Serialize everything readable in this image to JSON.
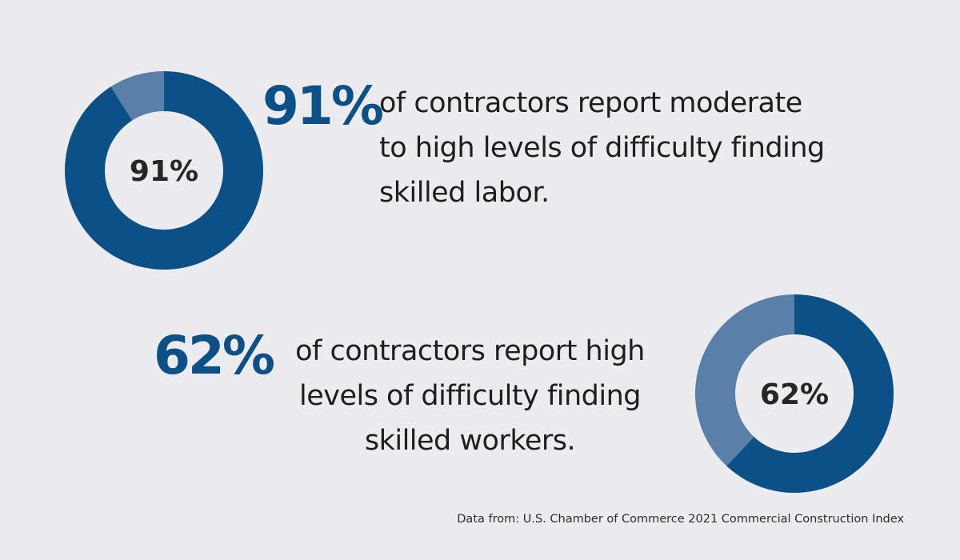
{
  "colors": {
    "background": "#ececee",
    "primary": "#0b5086",
    "secondary": "#5a80a9",
    "text": "#1e1e1e"
  },
  "chart_data": [
    {
      "type": "pie",
      "donut": true,
      "categories": [
        "",
        ""
      ],
      "values": [
        91,
        9
      ],
      "center_label": "91%"
    },
    {
      "type": "pie",
      "donut": true,
      "categories": [
        "",
        ""
      ],
      "values": [
        62,
        38
      ],
      "center_label": "62%"
    }
  ],
  "stats": [
    {
      "value": "91%",
      "lines": [
        "of contractors report moderate",
        "to high levels of difficulty finding",
        "skilled labor."
      ]
    },
    {
      "value": "62%",
      "lines": [
        "of contractors report high",
        "levels of difficulty finding",
        "skilled workers."
      ]
    }
  ],
  "source": "Data from: U.S. Chamber of Commerce 2021 Commercial Construction Index"
}
